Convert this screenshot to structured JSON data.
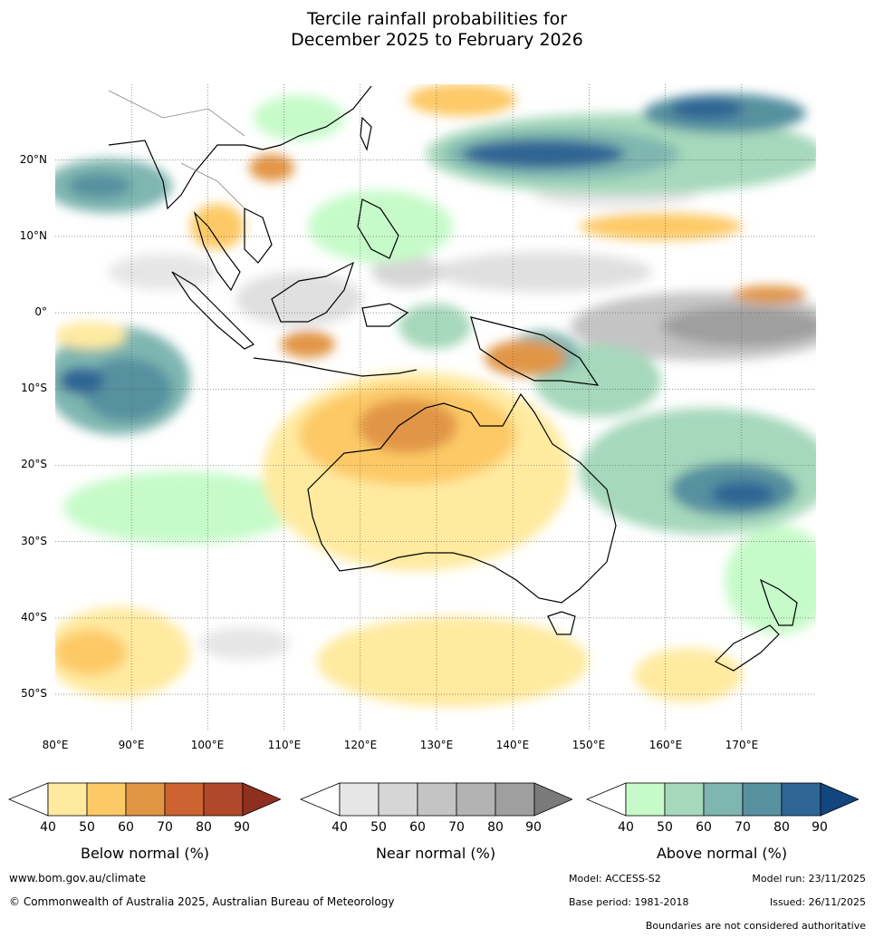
{
  "title": {
    "line1": "Tercile rainfall probabilities for",
    "line2": "December 2025 to February 2026"
  },
  "axes": {
    "lat_labels": [
      "20°N",
      "10°N",
      "0°",
      "10°S",
      "20°S",
      "30°S",
      "40°S",
      "50°S"
    ],
    "lon_labels": [
      "80°E",
      "90°E",
      "100°E",
      "110°E",
      "120°E",
      "130°E",
      "140°E",
      "150°E",
      "160°E",
      "170°E"
    ]
  },
  "colorbars": [
    {
      "title": "Below normal (%)",
      "ticks": [
        "40",
        "50",
        "60",
        "70",
        "80",
        "90"
      ],
      "colors": [
        "#ffffff",
        "#ffeaa0",
        "#fdc966",
        "#e19646",
        "#cc6331",
        "#b0482a",
        "#8f2f20"
      ]
    },
    {
      "title": "Near normal (%)",
      "ticks": [
        "40",
        "50",
        "60",
        "70",
        "80",
        "90"
      ],
      "colors": [
        "#ffffff",
        "#e6e6e6",
        "#d6d6d6",
        "#c4c4c4",
        "#b3b3b3",
        "#9f9f9f",
        "#7a7a7a"
      ]
    },
    {
      "title": "Above normal (%)",
      "ticks": [
        "40",
        "50",
        "60",
        "70",
        "80",
        "90"
      ],
      "colors": [
        "#ffffff",
        "#c6fbc9",
        "#a6d8bc",
        "#7fb6b0",
        "#5791a0",
        "#2e6594",
        "#13457f"
      ]
    }
  ],
  "footer": {
    "url": "www.bom.gov.au/climate",
    "copyright": "© Commonwealth of Australia 2025, Australian Bureau of Meteorology",
    "model": "Model: ACCESS-S2",
    "model_run": "Model run: 23/11/2025",
    "base_period": "Base period: 1981-2018",
    "issued": "Issued: 26/11/2025",
    "disclaimer": "Boundaries are not considered authoritative"
  }
}
